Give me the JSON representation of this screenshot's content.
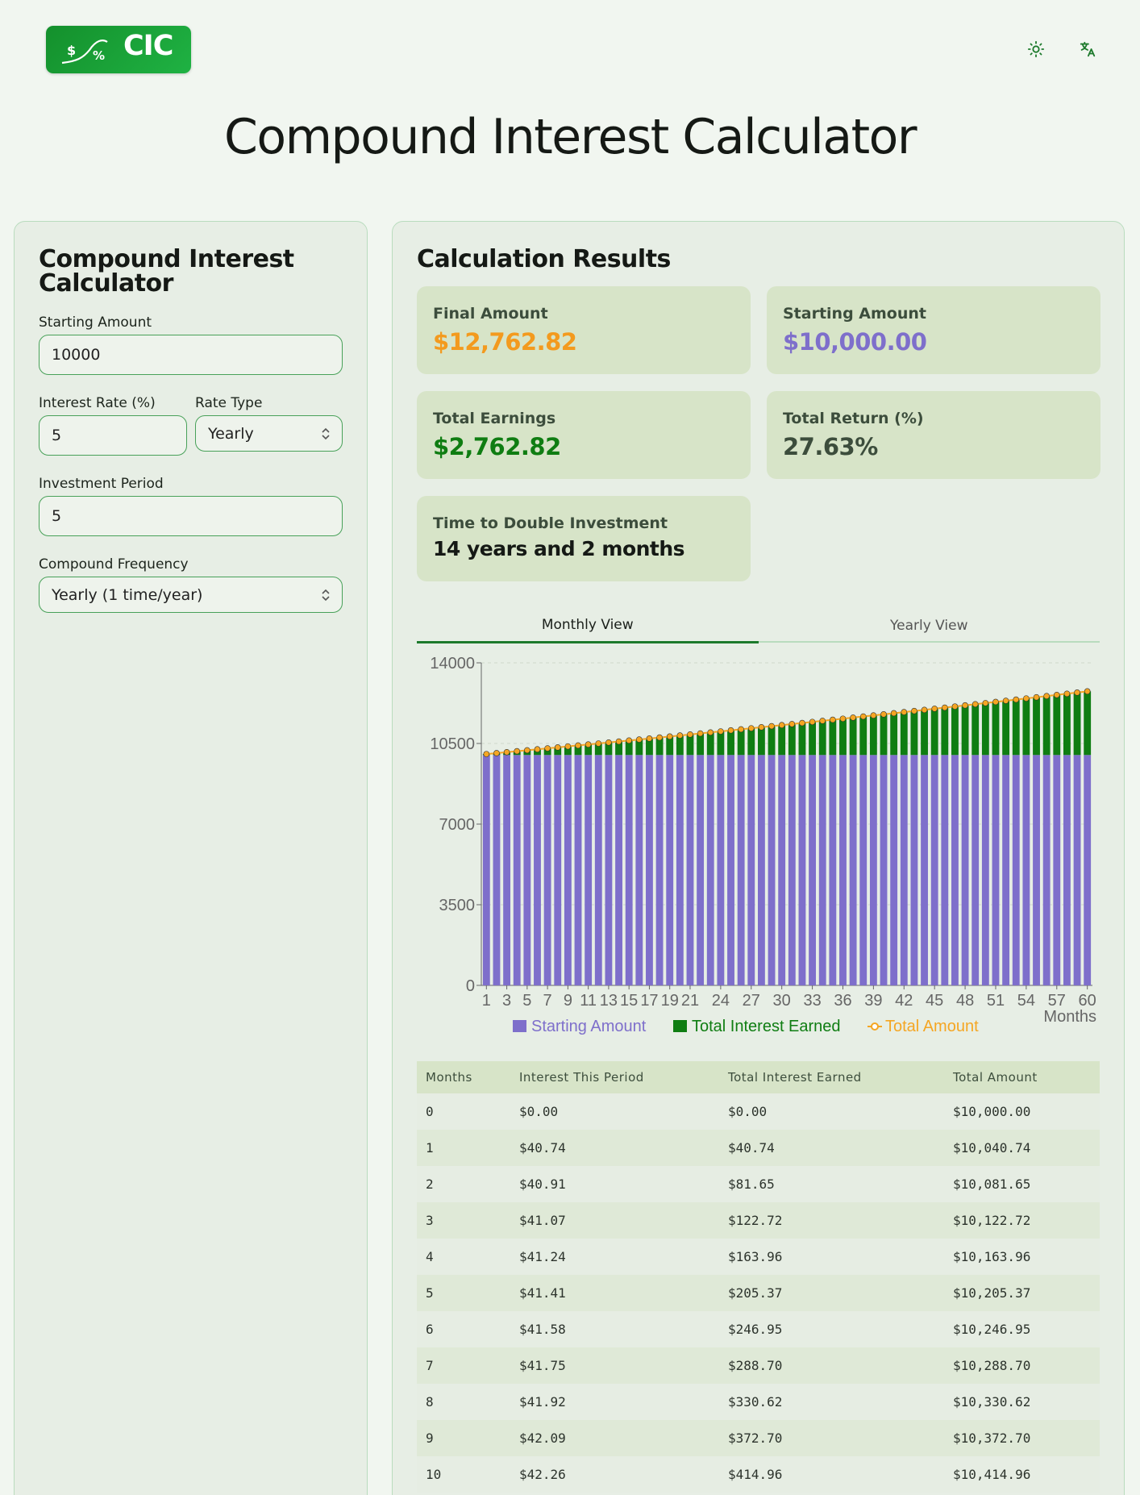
{
  "header": {
    "logo_text": "CIC",
    "logo_symbols": [
      "$",
      "%"
    ],
    "icons": [
      "sun-icon",
      "translate-icon"
    ]
  },
  "page_title": "Compound Interest Calculator",
  "form": {
    "heading_line1": "Compound Interest",
    "heading_line2": "Calculator",
    "starting_amount_label": "Starting Amount",
    "starting_amount_value": "10000",
    "interest_rate_label": "Interest Rate (%)",
    "interest_rate_value": "5",
    "rate_type_label": "Rate Type",
    "rate_type_value": "Yearly",
    "period_label": "Investment Period",
    "period_value": "5",
    "frequency_label": "Compound Frequency",
    "frequency_value": "Yearly (1 time/year)"
  },
  "results": {
    "heading": "Calculation Results",
    "final_amount_label": "Final Amount",
    "final_amount_value": "$12,762.82",
    "starting_amount_label": "Starting Amount",
    "starting_amount_value": "$10,000.00",
    "total_earnings_label": "Total Earnings",
    "total_earnings_value": "$2,762.82",
    "total_return_label": "Total Return (%)",
    "total_return_value": "27.63%",
    "double_label": "Time to Double Investment",
    "double_value": "14 years and 2 months"
  },
  "tabs": [
    {
      "label": "Monthly View",
      "active": true
    },
    {
      "label": "Yearly View",
      "active": false
    }
  ],
  "colors": {
    "starting": "#7e6fcb",
    "interest": "#0f7d12",
    "total": "#f5a623",
    "accent": "#1d7a2c"
  },
  "chart_data": {
    "type": "bar",
    "stacked": true,
    "x": [
      1,
      2,
      3,
      4,
      5,
      6,
      7,
      8,
      9,
      10,
      11,
      12,
      13,
      14,
      15,
      16,
      17,
      18,
      19,
      20,
      21,
      22,
      23,
      24,
      25,
      26,
      27,
      28,
      29,
      30,
      31,
      32,
      33,
      34,
      35,
      36,
      37,
      38,
      39,
      40,
      41,
      42,
      43,
      44,
      45,
      46,
      47,
      48,
      49,
      50,
      51,
      52,
      53,
      54,
      55,
      56,
      57,
      58,
      59,
      60
    ],
    "x_tick_labels": [
      "1",
      "3",
      "5",
      "7",
      "9",
      "11",
      "13",
      "15",
      "17",
      "19",
      "21",
      "24",
      "27",
      "30",
      "33",
      "36",
      "39",
      "42",
      "45",
      "48",
      "51",
      "54",
      "57",
      "60"
    ],
    "xlabel": "Months",
    "ylabel": "",
    "ylim": [
      0,
      14000
    ],
    "y_ticks": [
      "0",
      "3500",
      "7000",
      "10500",
      "14000"
    ],
    "grid": "horizontal-dashed",
    "legend_position": "bottom",
    "series": [
      {
        "name": "Starting Amount",
        "kind": "bar",
        "constant": 10000
      },
      {
        "name": "Total Interest Earned",
        "kind": "bar"
      },
      {
        "name": "Total Amount",
        "kind": "line",
        "start": 10040.74,
        "end": 12762.82
      }
    ]
  },
  "table": {
    "headers": [
      "Months",
      "Interest This Period",
      "Total Interest Earned",
      "Total Amount"
    ],
    "rows": [
      [
        "0",
        "$0.00",
        "$0.00",
        "$10,000.00"
      ],
      [
        "1",
        "$40.74",
        "$40.74",
        "$10,040.74"
      ],
      [
        "2",
        "$40.91",
        "$81.65",
        "$10,081.65"
      ],
      [
        "3",
        "$41.07",
        "$122.72",
        "$10,122.72"
      ],
      [
        "4",
        "$41.24",
        "$163.96",
        "$10,163.96"
      ],
      [
        "5",
        "$41.41",
        "$205.37",
        "$10,205.37"
      ],
      [
        "6",
        "$41.58",
        "$246.95",
        "$10,246.95"
      ],
      [
        "7",
        "$41.75",
        "$288.70",
        "$10,288.70"
      ],
      [
        "8",
        "$41.92",
        "$330.62",
        "$10,330.62"
      ],
      [
        "9",
        "$42.09",
        "$372.70",
        "$10,372.70"
      ],
      [
        "10",
        "$42.26",
        "$414.96",
        "$10,414.96"
      ]
    ]
  }
}
